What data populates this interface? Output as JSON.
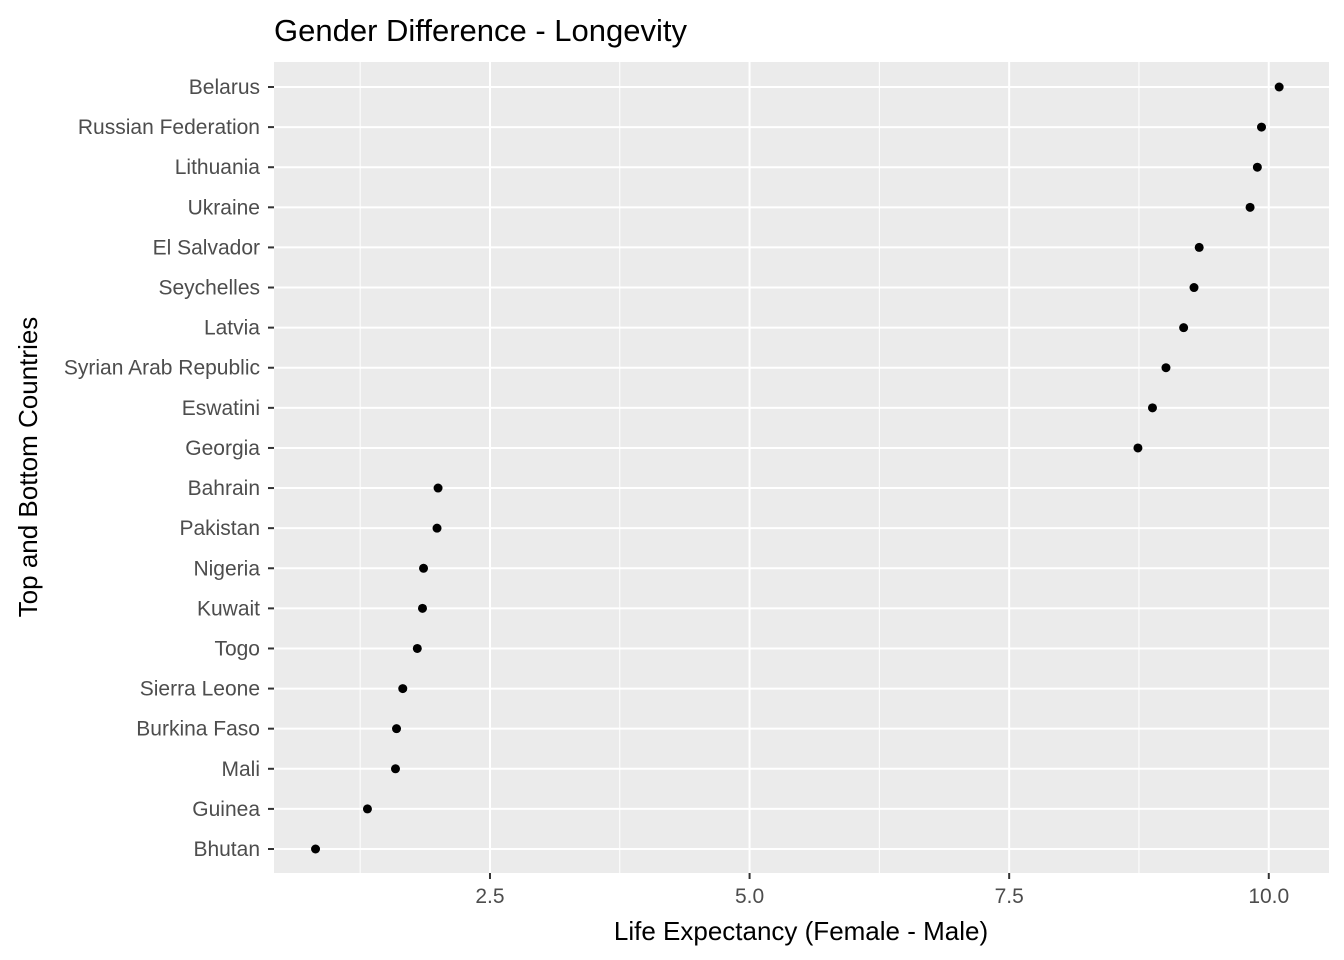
{
  "chart_data": {
    "type": "scatter",
    "title": "Gender Difference - Longevity",
    "xlabel": "Life Expectancy (Female - Male)",
    "ylabel": "Top and Bottom Countries",
    "xlim": [
      0.42,
      10.58
    ],
    "x_ticks": [
      2.5,
      5.0,
      7.5,
      10.0
    ],
    "x_tick_labels": [
      "2.5",
      "5.0",
      "7.5",
      "10.0"
    ],
    "grid": true,
    "background": "#ebebeb",
    "point_color": "#000000",
    "categories": [
      "Belarus",
      "Russian Federation",
      "Lithuania",
      "Ukraine",
      "El Salvador",
      "Seychelles",
      "Latvia",
      "Syrian Arab Republic",
      "Eswatini",
      "Georgia",
      "Bahrain",
      "Pakistan",
      "Nigeria",
      "Kuwait",
      "Togo",
      "Sierra Leone",
      "Burkina Faso",
      "Mali",
      "Guinea",
      "Bhutan"
    ],
    "values": [
      10.1,
      9.93,
      9.89,
      9.82,
      9.33,
      9.28,
      9.18,
      9.01,
      8.88,
      8.74,
      2.0,
      1.99,
      1.86,
      1.85,
      1.8,
      1.66,
      1.6,
      1.59,
      1.32,
      0.82
    ]
  }
}
